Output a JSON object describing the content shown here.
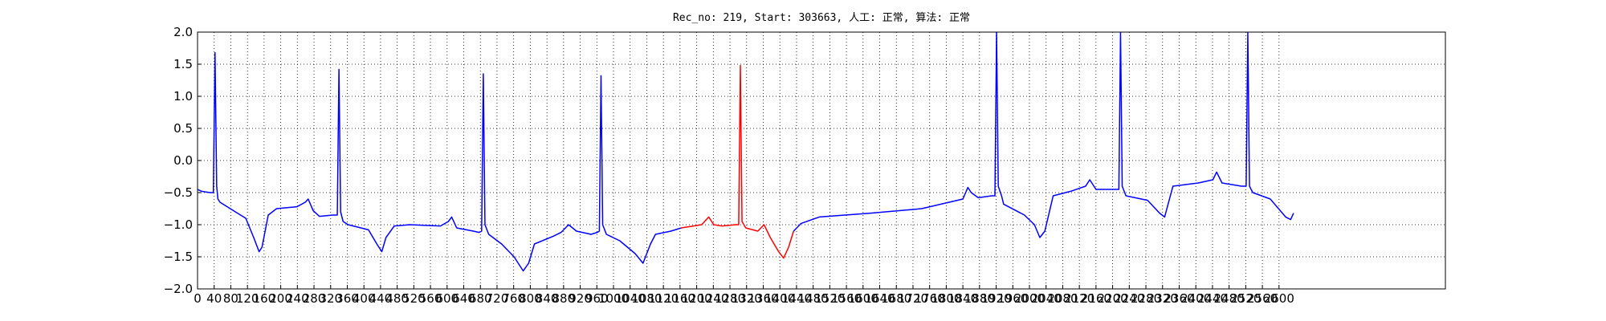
{
  "chart_data": {
    "type": "line",
    "title": "Rec_no: 219, Start: 303663, 人工: 正常, 算法: 正常",
    "xlim": [
      0,
      3000
    ],
    "xticks": [
      0,
      40,
      80,
      120,
      160,
      200,
      240,
      280,
      320,
      360,
      400,
      440,
      480,
      520,
      560,
      600,
      640,
      680,
      720,
      760,
      800,
      840,
      880,
      920,
      960,
      1000,
      1040,
      1080,
      1120,
      1160,
      1200,
      1240,
      1280,
      1320,
      1360,
      1400,
      1440,
      1480,
      1520,
      1560,
      1600,
      1640,
      1680,
      1720,
      1760,
      1800,
      1840,
      1880,
      1920,
      1960,
      2000,
      2040,
      2080,
      2120,
      2160,
      2200,
      2240,
      2280,
      2320,
      2360,
      2400,
      2440,
      2480,
      2520,
      2560,
      2600
    ],
    "ylim": [
      -2,
      2
    ],
    "yticks": [
      {
        "value": -2,
        "label": "−2.0"
      },
      {
        "value": -1.5,
        "label": "−1.5"
      },
      {
        "value": -1,
        "label": "−1.0"
      },
      {
        "value": -0.5,
        "label": "−0.5"
      },
      {
        "value": 0,
        "label": "0.0"
      },
      {
        "value": 0.5,
        "label": "0.5"
      },
      {
        "value": 1,
        "label": "1.0"
      },
      {
        "value": 1.5,
        "label": "1.5"
      },
      {
        "value": 2,
        "label": "2.0"
      }
    ],
    "grid": true,
    "series": [
      {
        "color": "#0000ff",
        "x": [
          0,
          10,
          30,
          38,
          42,
          46,
          49,
          54,
          91,
          116,
          135,
          148,
          155,
          170,
          190,
          239,
          259,
          266,
          278,
          293,
          325,
          336,
          340,
          344,
          350,
          362,
          411,
          431,
          443,
          453,
          473,
          510,
          584,
          603,
          611,
          623,
          663,
          677,
          683,
          687,
          691,
          700,
          731,
          761,
          783,
          796,
          810,
          855,
          874,
          892,
          911,
          946,
          961,
          966,
          970,
          974,
          983,
          1015,
          1052,
          1071,
          1089,
          1101,
          1138,
          1163
        ],
        "values": [
          -0.45,
          -0.48,
          -0.5,
          -0.5,
          1.68,
          -0.4,
          -0.6,
          -0.65,
          -0.8,
          -0.9,
          -1.2,
          -1.42,
          -1.35,
          -0.85,
          -0.75,
          -0.72,
          -0.65,
          -0.6,
          -0.78,
          -0.87,
          -0.85,
          -0.85,
          1.42,
          -0.8,
          -0.95,
          -1.0,
          -1.08,
          -1.3,
          -1.42,
          -1.2,
          -1.02,
          -1.0,
          -1.02,
          -0.95,
          -0.88,
          -1.05,
          -1.1,
          -1.12,
          -1.1,
          1.35,
          -1.0,
          -1.15,
          -1.3,
          -1.5,
          -1.72,
          -1.6,
          -1.3,
          -1.18,
          -1.12,
          -1.0,
          -1.1,
          -1.15,
          -1.12,
          -1.1,
          1.32,
          -1.0,
          -1.15,
          -1.25,
          -1.45,
          -1.6,
          -1.3,
          -1.15,
          -1.1,
          -1.05
        ]
      },
      {
        "color": "#ff0000",
        "x": [
          1163,
          1212,
          1229,
          1241,
          1261,
          1293,
          1301,
          1305,
          1309,
          1318,
          1347,
          1362,
          1377,
          1397,
          1409,
          1421,
          1433
        ],
        "values": [
          -1.05,
          -1.0,
          -0.88,
          -1.0,
          -1.02,
          -1.0,
          -1.0,
          1.48,
          -0.95,
          -1.05,
          -1.1,
          -1.0,
          -1.2,
          -1.42,
          -1.52,
          -1.35,
          -1.1
        ]
      },
      {
        "color": "#0000ff",
        "x": [
          1433,
          1451,
          1495,
          1618,
          1741,
          1840,
          1852,
          1860,
          1877,
          1909,
          1917,
          1921,
          1925,
          1933,
          1938,
          1988,
          2012,
          2025,
          2037,
          2057,
          2099,
          2135,
          2145,
          2160,
          2204,
          2215,
          2219,
          2223,
          2232,
          2284,
          2313,
          2325,
          2345,
          2406,
          2441,
          2450,
          2463,
          2510,
          2521,
          2525,
          2529,
          2537,
          2579,
          2616,
          2628,
          2635
        ],
        "values": [
          -1.1,
          -0.98,
          -0.88,
          -0.82,
          -0.75,
          -0.6,
          -0.42,
          -0.5,
          -0.58,
          -0.55,
          -0.55,
          2.0,
          -0.4,
          -0.55,
          -0.68,
          -0.85,
          -1.0,
          -1.2,
          -1.1,
          -0.55,
          -0.48,
          -0.4,
          -0.3,
          -0.45,
          -0.45,
          -0.45,
          2.0,
          -0.4,
          -0.55,
          -0.62,
          -0.82,
          -0.88,
          -0.4,
          -0.35,
          -0.3,
          -0.18,
          -0.35,
          -0.4,
          -0.4,
          2.0,
          -0.4,
          -0.5,
          -0.6,
          -0.88,
          -0.92,
          -0.82
        ]
      }
    ]
  }
}
